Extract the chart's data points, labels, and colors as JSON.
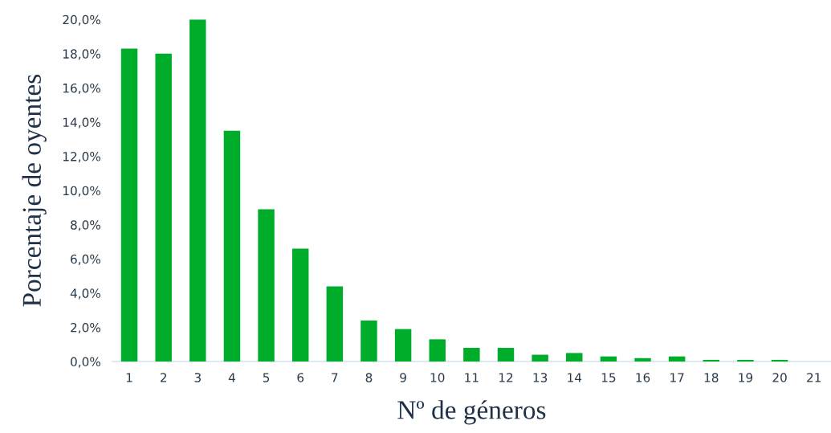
{
  "chart_data": {
    "type": "bar",
    "xlabel": "Nº de géneros",
    "ylabel": "Porcentaje de oyentes",
    "categories": [
      "1",
      "2",
      "3",
      "4",
      "5",
      "6",
      "7",
      "8",
      "9",
      "10",
      "11",
      "12",
      "13",
      "14",
      "15",
      "16",
      "17",
      "18",
      "19",
      "20",
      "21"
    ],
    "values": [
      18.3,
      18.0,
      20.0,
      13.5,
      8.9,
      6.6,
      4.4,
      2.4,
      1.9,
      1.3,
      0.8,
      0.8,
      0.4,
      0.5,
      0.3,
      0.2,
      0.3,
      0.1,
      0.1,
      0.1,
      0
    ],
    "color": "#00ad2a",
    "ylim": [
      0,
      20
    ],
    "yticks": [
      {
        "value": 0,
        "label": "0,0%"
      },
      {
        "value": 2,
        "label": "2,0%"
      },
      {
        "value": 4,
        "label": "4,0%"
      },
      {
        "value": 6,
        "label": "6,0%"
      },
      {
        "value": 8,
        "label": "8,0%"
      },
      {
        "value": 10,
        "label": "10,0%"
      },
      {
        "value": 12,
        "label": "12,0%"
      },
      {
        "value": 14,
        "label": "14,0%"
      },
      {
        "value": 16,
        "label": "16,0%"
      },
      {
        "value": 18,
        "label": "18,0%"
      },
      {
        "value": 20,
        "label": "20,0%"
      }
    ],
    "grid": false,
    "legend": false
  }
}
